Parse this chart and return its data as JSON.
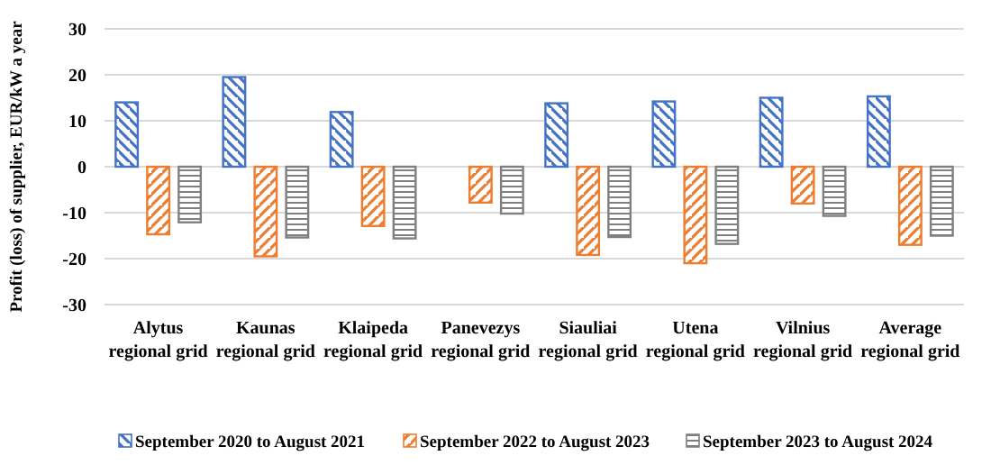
{
  "chart_data": {
    "type": "bar",
    "ylabel": "Profit (loss) of supplier, EUR/kW a year",
    "categories": [
      "Alytus regional grid",
      "Kaunas regional grid",
      "Klaipeda regional grid",
      "Panevezys regional grid",
      "Siauliai regional grid",
      "Utena regional grid",
      "Vilnius regional grid",
      "Average regional grid"
    ],
    "series": [
      {
        "name": "September 2020 to August 2021",
        "color": "#4472c4",
        "values": [
          14.0,
          19.5,
          11.9,
          null,
          13.8,
          14.2,
          15.0,
          15.3
        ]
      },
      {
        "name": "September 2022 to August 2023",
        "color": "#ed7d31",
        "values": [
          -14.7,
          -19.5,
          -12.9,
          -7.8,
          -19.2,
          -21.0,
          -8.0,
          -17.0
        ]
      },
      {
        "name": "September 2023 to August 2024",
        "color": "#7f7f7f",
        "values": [
          -12.1,
          -15.4,
          -15.6,
          -10.2,
          -15.3,
          -16.8,
          -10.7,
          -15.0
        ]
      }
    ],
    "ylim": [
      -30,
      30
    ],
    "yticks": [
      -30,
      -20,
      -10,
      0,
      10,
      20,
      30
    ],
    "grid": "y",
    "legend": "bottom"
  }
}
